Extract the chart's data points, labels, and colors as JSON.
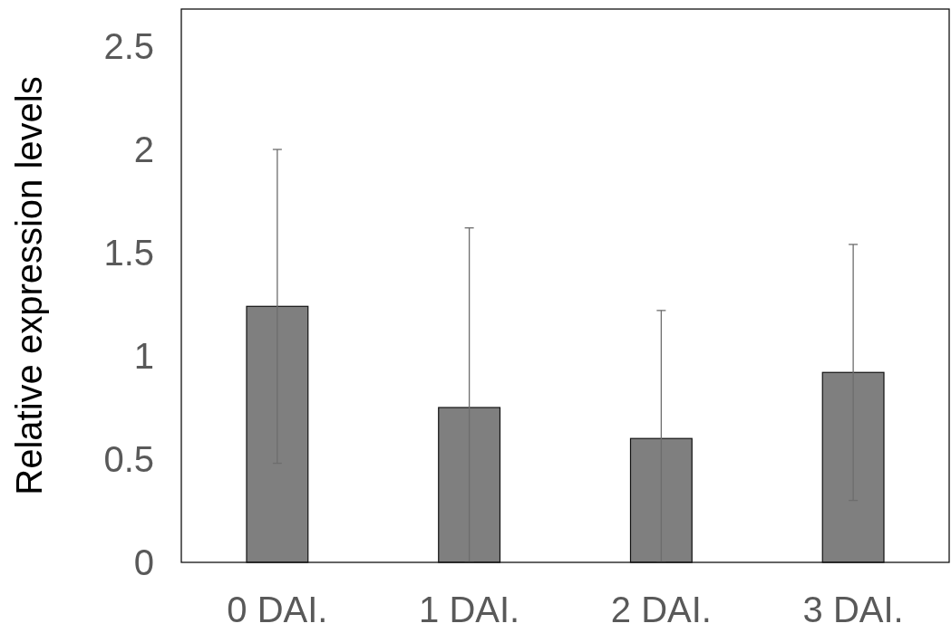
{
  "chart_data": {
    "type": "bar",
    "ylabel": "Relative expression levels",
    "categories": [
      "0 DAI.",
      "1 DAI.",
      "2 DAI.",
      "3 DAI."
    ],
    "values": [
      1.24,
      0.75,
      0.6,
      0.92
    ],
    "errors": [
      0.76,
      [
        0,
        1.62
      ],
      [
        0,
        1.22
      ],
      0.62
    ],
    "color": "#7f7f7f",
    "ylim": [
      0,
      2.68
    ],
    "yticks": [
      0,
      0.5,
      1,
      1.5,
      2,
      2.5
    ],
    "grid": false
  }
}
